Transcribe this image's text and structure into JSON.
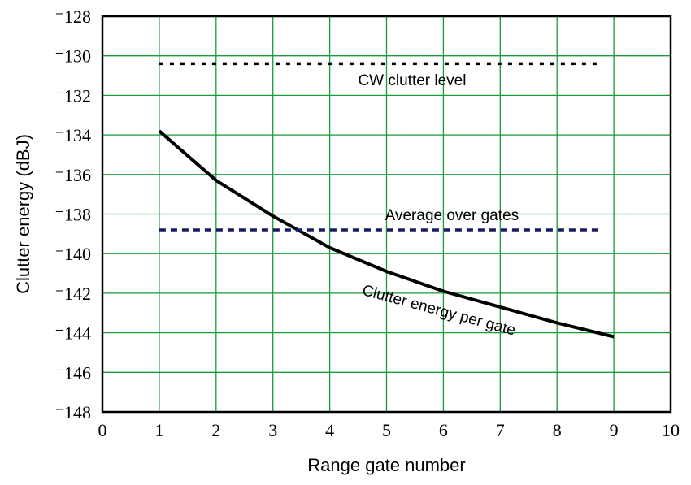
{
  "chart_data": {
    "type": "line",
    "title": "",
    "xlabel": "Range gate number",
    "ylabel": "Clutter energy (dBJ)",
    "xlim": [
      0,
      10
    ],
    "ylim": [
      -148,
      -128
    ],
    "xticks": [
      "0",
      "1",
      "2",
      "3",
      "4",
      "5",
      "6",
      "7",
      "8",
      "9",
      "10"
    ],
    "yticks": [
      "-128",
      "-130",
      "-132",
      "-134",
      "-136",
      "-138",
      "-140",
      "-142",
      "-144",
      "-146",
      "-148"
    ],
    "grid": true,
    "grid_color": "#1a9a3a",
    "series": [
      {
        "label": "Clutter energy per gate",
        "style": "solid",
        "color": "#000000",
        "x": [
          1,
          2,
          3,
          4,
          5,
          6,
          7,
          8,
          9
        ],
        "y": [
          -133.8,
          -136.3,
          -138.1,
          -139.7,
          -140.9,
          -141.9,
          -142.7,
          -143.5,
          -144.2
        ]
      },
      {
        "label": "CW clutter level",
        "style": "dotted",
        "color": "#000000",
        "x": [
          1,
          8.8
        ],
        "y": [
          -130.4,
          -130.4
        ]
      },
      {
        "label": "Average over gates",
        "style": "dashed",
        "color": "#1a1a5e",
        "x": [
          1,
          8.8
        ],
        "y": [
          -138.8,
          -138.8
        ]
      }
    ],
    "annotations": [
      {
        "text": "CW clutter level",
        "x": 5.45,
        "y": -131.5,
        "rotate": 0
      },
      {
        "text": "Average over gates",
        "x": 6.15,
        "y": -138.3,
        "rotate": 0
      },
      {
        "text": "Clutter energy per gate",
        "x": 5.9,
        "y": -143.1,
        "rotate": 15
      }
    ]
  }
}
